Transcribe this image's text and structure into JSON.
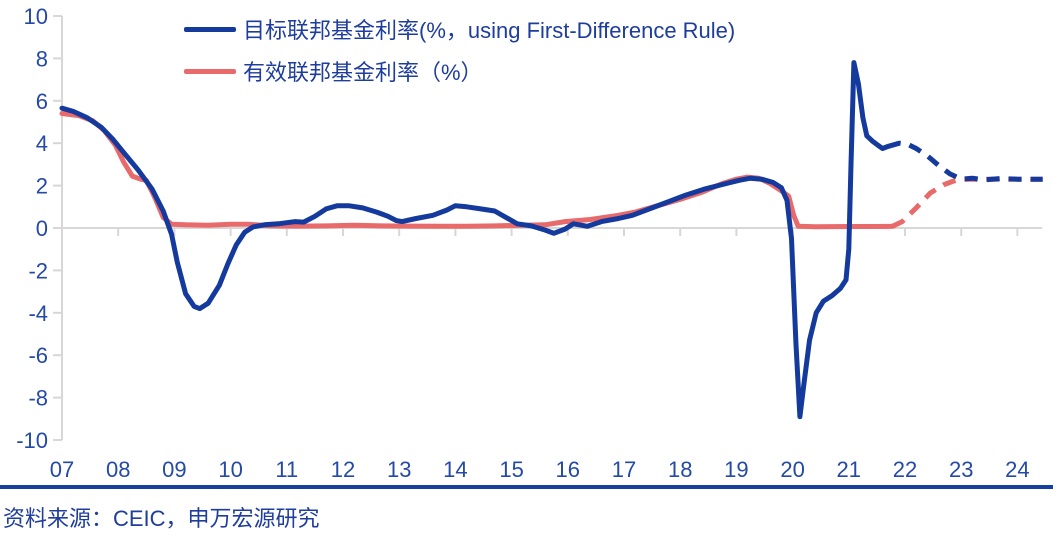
{
  "source_note": "资料来源：CEIC，申万宏源研究",
  "colors": {
    "line_blue": "#143a9e",
    "line_red": "#e96a6b",
    "text_blue": "#2449a6",
    "axis_gray": "#d7d7d7"
  },
  "chart_data": {
    "type": "line",
    "title": "",
    "xlabel": "",
    "ylabel": "",
    "legend_position": "top-left",
    "grid": "zero-baseline-only",
    "x_axis": {
      "tick_labels": [
        "07",
        "08",
        "09",
        "10",
        "11",
        "12",
        "13",
        "14",
        "15",
        "16",
        "17",
        "18",
        "19",
        "20",
        "21",
        "22",
        "23",
        "24"
      ],
      "tick_years": [
        7,
        8,
        9,
        10,
        11,
        12,
        13,
        14,
        15,
        16,
        17,
        18,
        19,
        20,
        21,
        22,
        23,
        24
      ],
      "range_years": [
        7.0,
        24.6
      ]
    },
    "y_axis": {
      "ticks": [
        10,
        8,
        6,
        4,
        2,
        0,
        -2,
        -4,
        -6,
        -8,
        -10
      ],
      "range": [
        -10,
        10
      ],
      "unit": "%"
    },
    "series": [
      {
        "name": "目标联邦基金利率(%，using First-Difference Rule)",
        "color": "#143a9e",
        "segments": [
          {
            "style": "solid",
            "points": [
              [
                7.0,
                5.65
              ],
              [
                7.2,
                5.5
              ],
              [
                7.45,
                5.2
              ],
              [
                7.7,
                4.75
              ],
              [
                7.9,
                4.2
              ],
              [
                8.1,
                3.55
              ],
              [
                8.35,
                2.75
              ],
              [
                8.6,
                1.85
              ],
              [
                8.8,
                0.8
              ],
              [
                8.95,
                -0.3
              ],
              [
                9.05,
                -1.6
              ],
              [
                9.2,
                -3.1
              ],
              [
                9.35,
                -3.7
              ],
              [
                9.45,
                -3.8
              ],
              [
                9.6,
                -3.55
              ],
              [
                9.8,
                -2.7
              ],
              [
                9.95,
                -1.7
              ],
              [
                10.1,
                -0.8
              ],
              [
                10.25,
                -0.2
              ],
              [
                10.4,
                0.05
              ],
              [
                10.6,
                0.15
              ],
              [
                10.85,
                0.2
              ],
              [
                11.0,
                0.25
              ],
              [
                11.15,
                0.3
              ],
              [
                11.3,
                0.28
              ],
              [
                11.5,
                0.55
              ],
              [
                11.7,
                0.9
              ],
              [
                11.9,
                1.05
              ],
              [
                12.1,
                1.05
              ],
              [
                12.35,
                0.95
              ],
              [
                12.6,
                0.75
              ],
              [
                12.8,
                0.55
              ],
              [
                12.95,
                0.35
              ],
              [
                13.05,
                0.3
              ],
              [
                13.3,
                0.45
              ],
              [
                13.6,
                0.6
              ],
              [
                13.85,
                0.85
              ],
              [
                14.0,
                1.05
              ],
              [
                14.2,
                1.0
              ],
              [
                14.45,
                0.9
              ],
              [
                14.7,
                0.8
              ],
              [
                14.9,
                0.5
              ],
              [
                15.1,
                0.2
              ],
              [
                15.35,
                0.1
              ],
              [
                15.6,
                -0.1
              ],
              [
                15.75,
                -0.25
              ],
              [
                15.95,
                -0.05
              ],
              [
                16.1,
                0.2
              ],
              [
                16.35,
                0.08
              ],
              [
                16.6,
                0.3
              ],
              [
                16.9,
                0.45
              ],
              [
                17.15,
                0.6
              ],
              [
                17.5,
                0.95
              ],
              [
                17.8,
                1.25
              ],
              [
                18.1,
                1.55
              ],
              [
                18.45,
                1.85
              ],
              [
                18.75,
                2.05
              ],
              [
                19.05,
                2.25
              ],
              [
                19.25,
                2.35
              ],
              [
                19.45,
                2.3
              ],
              [
                19.65,
                2.15
              ],
              [
                19.8,
                1.9
              ],
              [
                19.9,
                1.3
              ],
              [
                19.98,
                -0.5
              ],
              [
                20.06,
                -5.5
              ],
              [
                20.13,
                -8.9
              ],
              [
                20.2,
                -7.4
              ],
              [
                20.3,
                -5.3
              ],
              [
                20.42,
                -4.0
              ],
              [
                20.55,
                -3.45
              ],
              [
                20.7,
                -3.2
              ],
              [
                20.85,
                -2.85
              ],
              [
                20.95,
                -2.45
              ],
              [
                21.0,
                -1.0
              ],
              [
                21.04,
                3.0
              ],
              [
                21.09,
                7.8
              ],
              [
                21.17,
                6.8
              ],
              [
                21.25,
                5.2
              ],
              [
                21.32,
                4.35
              ],
              [
                21.42,
                4.1
              ],
              [
                21.52,
                3.9
              ],
              [
                21.6,
                3.75
              ],
              [
                21.7,
                3.85
              ]
            ]
          },
          {
            "style": "dashed",
            "points": [
              [
                21.7,
                3.85
              ],
              [
                21.9,
                4.0
              ],
              [
                22.05,
                3.95
              ],
              [
                22.2,
                3.75
              ],
              [
                22.4,
                3.4
              ],
              [
                22.6,
                2.95
              ],
              [
                22.8,
                2.55
              ],
              [
                23.0,
                2.3
              ],
              [
                23.2,
                2.35
              ],
              [
                23.4,
                2.27
              ],
              [
                23.7,
                2.33
              ],
              [
                24.0,
                2.3
              ],
              [
                24.45,
                2.3
              ]
            ]
          }
        ]
      },
      {
        "name": "有效联邦基金利率（%）",
        "color": "#e96a6b",
        "segments": [
          {
            "style": "solid",
            "points": [
              [
                7.0,
                5.4
              ],
              [
                7.3,
                5.3
              ],
              [
                7.55,
                5.05
              ],
              [
                7.75,
                4.6
              ],
              [
                7.95,
                3.9
              ],
              [
                8.1,
                3.1
              ],
              [
                8.25,
                2.45
              ],
              [
                8.4,
                2.3
              ],
              [
                8.5,
                2.25
              ],
              [
                8.65,
                1.45
              ],
              [
                8.8,
                0.5
              ],
              [
                8.95,
                0.18
              ],
              [
                9.2,
                0.15
              ],
              [
                9.6,
                0.13
              ],
              [
                10.0,
                0.18
              ],
              [
                10.3,
                0.18
              ],
              [
                10.7,
                0.1
              ],
              [
                11.2,
                0.09
              ],
              [
                11.7,
                0.1
              ],
              [
                12.2,
                0.13
              ],
              [
                12.7,
                0.1
              ],
              [
                13.2,
                0.09
              ],
              [
                13.7,
                0.08
              ],
              [
                14.2,
                0.08
              ],
              [
                14.7,
                0.1
              ],
              [
                15.2,
                0.13
              ],
              [
                15.6,
                0.15
              ],
              [
                15.95,
                0.3
              ],
              [
                16.4,
                0.4
              ],
              [
                16.9,
                0.6
              ],
              [
                17.2,
                0.75
              ],
              [
                17.6,
                1.05
              ],
              [
                18.0,
                1.35
              ],
              [
                18.4,
                1.7
              ],
              [
                18.75,
                2.1
              ],
              [
                19.0,
                2.3
              ],
              [
                19.2,
                2.4
              ],
              [
                19.4,
                2.35
              ],
              [
                19.6,
                2.1
              ],
              [
                19.8,
                1.75
              ],
              [
                19.93,
                1.5
              ],
              [
                20.02,
                0.6
              ],
              [
                20.1,
                0.08
              ],
              [
                20.4,
                0.06
              ],
              [
                21.0,
                0.07
              ],
              [
                21.5,
                0.07
              ],
              [
                21.78,
                0.08
              ]
            ]
          },
          {
            "style": "dashed",
            "points": [
              [
                21.78,
                0.08
              ],
              [
                21.95,
                0.3
              ],
              [
                22.2,
                0.95
              ],
              [
                22.45,
                1.65
              ],
              [
                22.7,
                2.05
              ],
              [
                22.9,
                2.25
              ],
              [
                23.05,
                2.3
              ],
              [
                23.3,
                2.3
              ],
              [
                23.7,
                2.3
              ],
              [
                24.0,
                2.3
              ],
              [
                24.45,
                2.3
              ]
            ]
          }
        ]
      }
    ]
  }
}
